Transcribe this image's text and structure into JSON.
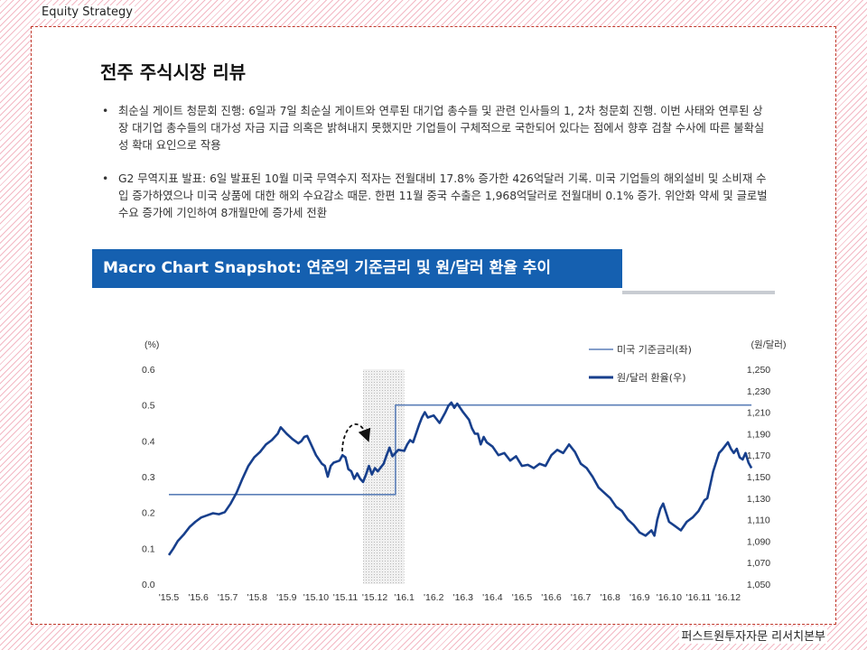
{
  "header": {
    "brand": "Equity Strategy"
  },
  "page": {
    "title": "전주 주식시장 리뷰"
  },
  "bullets": [
    {
      "text": "최순실 게이트 청문회 진행: 6일과 7일 최순실 게이트와 연루된 대기업 총수들 및 관련 인사들의 1, 2차 청문회 진행. 이번 사태와 연루된 상장 대기업 총수들의 대가성 자금 지급 의혹은 밝혀내지 못했지만 기업들이 구체적으로 국한되어 있다는 점에서 향후 검찰 수사에 따른 불확실성 확대 요인으로 작용"
    },
    {
      "text": "G2 무역지표 발표: 6일 발표된 10월 미국 무역수지 적자는 전월대비 17.8% 증가한 426억달러 기록. 미국 기업들의 해외설비 및 소비재 수입 증가하였으나 미국 상품에 대한 해외 수요감소 때문. 한편 11월 중국 수출은 1,968억달러로 전월대비 0.1% 증가. 위안화 약세 및 글로벌 수요 증가에 기인하여 8개월만에 증가세 전환"
    }
  ],
  "banner": {
    "title": "Macro Chart Snapshot: 연준의 기준금리 및 원/달러 환율 추이"
  },
  "footer": {
    "text": "퍼스트원투자자문 리서치본부"
  },
  "colors": {
    "accent": "#1560b0",
    "rate_line": "#5b7fb8",
    "fx_line": "#173f8c",
    "frame": "#c0392b"
  },
  "chart_data": {
    "type": "line",
    "categories": [
      "'15.5",
      "'15.6",
      "'15.7",
      "'15.8",
      "'15.9",
      "'15.10",
      "'15.11",
      "'15.12",
      "'16.1",
      "'16.2",
      "'16.3",
      "'16.4",
      "'16.5",
      "'16.6",
      "'16.7",
      "'16.8",
      "'16.9",
      "'16.10",
      "'16.11",
      "'16.12"
    ],
    "left_axis": {
      "unit": "(%)",
      "ticks": [
        "0.6",
        "0.5",
        "0.4",
        "0.3",
        "0.2",
        "0.1",
        "0.0"
      ],
      "min": 0.0,
      "max": 0.6
    },
    "right_axis": {
      "unit": "(원/달러)",
      "ticks": [
        "1,250",
        "1,230",
        "1,210",
        "1,190",
        "1,170",
        "1,150",
        "1,130",
        "1,110",
        "1,090",
        "1,070",
        "1,050"
      ],
      "min": 1050,
      "max": 1250
    },
    "highlight_period": {
      "from": 6.6,
      "to": 8.0
    },
    "series": [
      {
        "name": "미국 기준금리(좌)",
        "axis": "left",
        "points": [
          [
            0,
            0.25
          ],
          [
            7.7,
            0.25
          ],
          [
            7.7,
            0.5
          ],
          [
            19.8,
            0.5
          ]
        ]
      },
      {
        "name": "원/달러 환율(우)",
        "axis": "right",
        "points": [
          [
            0,
            1077
          ],
          [
            0.15,
            1083
          ],
          [
            0.3,
            1090
          ],
          [
            0.5,
            1096
          ],
          [
            0.7,
            1103
          ],
          [
            0.9,
            1108
          ],
          [
            1.1,
            1112
          ],
          [
            1.3,
            1114
          ],
          [
            1.5,
            1116
          ],
          [
            1.7,
            1115
          ],
          [
            1.9,
            1117
          ],
          [
            2.1,
            1125
          ],
          [
            2.3,
            1135
          ],
          [
            2.5,
            1148
          ],
          [
            2.7,
            1160
          ],
          [
            2.9,
            1168
          ],
          [
            3.1,
            1173
          ],
          [
            3.3,
            1180
          ],
          [
            3.5,
            1184
          ],
          [
            3.7,
            1190
          ],
          [
            3.8,
            1196
          ],
          [
            4.0,
            1190
          ],
          [
            4.2,
            1185
          ],
          [
            4.4,
            1181
          ],
          [
            4.5,
            1183
          ],
          [
            4.6,
            1187
          ],
          [
            4.7,
            1188
          ],
          [
            4.8,
            1182
          ],
          [
            5.0,
            1170
          ],
          [
            5.2,
            1162
          ],
          [
            5.3,
            1160
          ],
          [
            5.4,
            1150
          ],
          [
            5.5,
            1160
          ],
          [
            5.6,
            1163
          ],
          [
            5.8,
            1165
          ],
          [
            5.9,
            1170
          ],
          [
            6.0,
            1168
          ],
          [
            6.1,
            1157
          ],
          [
            6.2,
            1155
          ],
          [
            6.3,
            1148
          ],
          [
            6.4,
            1153
          ],
          [
            6.5,
            1148
          ],
          [
            6.6,
            1145
          ],
          [
            6.7,
            1152
          ],
          [
            6.8,
            1160
          ],
          [
            6.9,
            1152
          ],
          [
            7.0,
            1158
          ],
          [
            7.1,
            1155
          ],
          [
            7.3,
            1162
          ],
          [
            7.4,
            1170
          ],
          [
            7.5,
            1177
          ],
          [
            7.6,
            1169
          ],
          [
            7.8,
            1175
          ],
          [
            8.0,
            1174
          ],
          [
            8.1,
            1180
          ],
          [
            8.2,
            1184
          ],
          [
            8.3,
            1182
          ],
          [
            8.5,
            1198
          ],
          [
            8.6,
            1205
          ],
          [
            8.7,
            1210
          ],
          [
            8.8,
            1205
          ],
          [
            9.0,
            1207
          ],
          [
            9.2,
            1200
          ],
          [
            9.4,
            1210
          ],
          [
            9.5,
            1216
          ],
          [
            9.6,
            1219
          ],
          [
            9.7,
            1214
          ],
          [
            9.8,
            1218
          ],
          [
            10.0,
            1210
          ],
          [
            10.2,
            1203
          ],
          [
            10.3,
            1195
          ],
          [
            10.4,
            1190
          ],
          [
            10.5,
            1190
          ],
          [
            10.6,
            1180
          ],
          [
            10.7,
            1187
          ],
          [
            10.8,
            1182
          ],
          [
            11.0,
            1178
          ],
          [
            11.2,
            1170
          ],
          [
            11.4,
            1172
          ],
          [
            11.6,
            1165
          ],
          [
            11.8,
            1169
          ],
          [
            12.0,
            1160
          ],
          [
            12.2,
            1161
          ],
          [
            12.4,
            1158
          ],
          [
            12.6,
            1162
          ],
          [
            12.8,
            1160
          ],
          [
            13.0,
            1170
          ],
          [
            13.2,
            1175
          ],
          [
            13.4,
            1172
          ],
          [
            13.6,
            1180
          ],
          [
            13.8,
            1173
          ],
          [
            14.0,
            1162
          ],
          [
            14.2,
            1158
          ],
          [
            14.4,
            1150
          ],
          [
            14.6,
            1140
          ],
          [
            14.8,
            1135
          ],
          [
            15.0,
            1130
          ],
          [
            15.2,
            1122
          ],
          [
            15.4,
            1118
          ],
          [
            15.6,
            1110
          ],
          [
            15.8,
            1105
          ],
          [
            16.0,
            1098
          ],
          [
            16.2,
            1095
          ],
          [
            16.4,
            1100
          ],
          [
            16.5,
            1095
          ],
          [
            16.6,
            1110
          ],
          [
            16.7,
            1120
          ],
          [
            16.8,
            1125
          ],
          [
            17.0,
            1108
          ],
          [
            17.2,
            1104
          ],
          [
            17.4,
            1100
          ],
          [
            17.6,
            1108
          ],
          [
            17.8,
            1112
          ],
          [
            18.0,
            1118
          ],
          [
            18.2,
            1128
          ],
          [
            18.3,
            1130
          ],
          [
            18.5,
            1155
          ],
          [
            18.7,
            1172
          ],
          [
            18.8,
            1175
          ],
          [
            19.0,
            1182
          ],
          [
            19.1,
            1176
          ],
          [
            19.2,
            1172
          ],
          [
            19.3,
            1176
          ],
          [
            19.4,
            1168
          ],
          [
            19.5,
            1166
          ],
          [
            19.6,
            1172
          ],
          [
            19.7,
            1163
          ],
          [
            19.8,
            1158
          ]
        ]
      }
    ],
    "grid": false,
    "legend_placement": "top-right"
  }
}
